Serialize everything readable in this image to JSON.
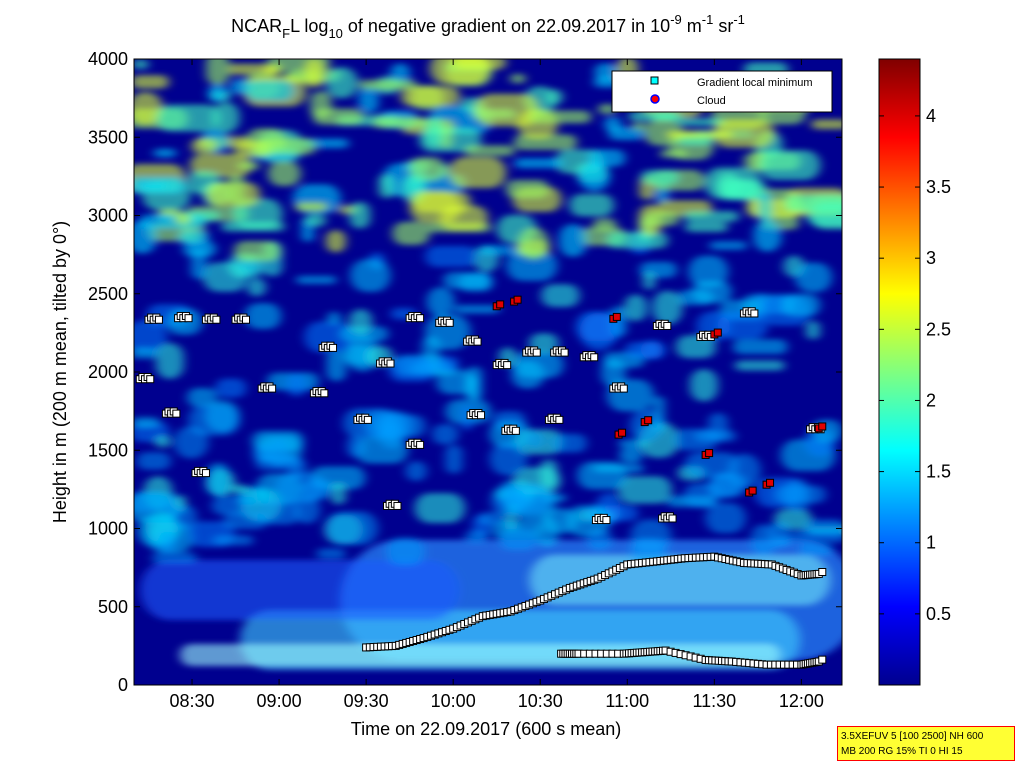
{
  "chart_data": {
    "type": "heatmap",
    "title": {
      "main": "NCAR",
      "sub1": "F",
      "mid1": "L log",
      "sub2": "10",
      "mid2": " of negative gradient on 22.09.2017 in 10",
      "sup1": "-9",
      "mid3": " m",
      "sup2": "-1",
      "mid4": " sr",
      "sup3": "-1"
    },
    "xlabel": "Time on 22.09.2017 (600 s mean)",
    "ylabel": "Height in m (200 m mean, tilted by 0°)",
    "xlim_hours": [
      8.1667,
      12.2333
    ],
    "ylim": [
      0,
      4000
    ],
    "x_ticks": [
      {
        "value": 8.5,
        "label": "08:30"
      },
      {
        "value": 9.0,
        "label": "09:00"
      },
      {
        "value": 9.5,
        "label": "09:30"
      },
      {
        "value": 10.0,
        "label": "10:00"
      },
      {
        "value": 10.5,
        "label": "10:30"
      },
      {
        "value": 11.0,
        "label": "11:00"
      },
      {
        "value": 11.5,
        "label": "11:30"
      },
      {
        "value": 12.0,
        "label": "12:00"
      }
    ],
    "y_ticks": [
      0,
      500,
      1000,
      1500,
      2000,
      2500,
      3000,
      3500,
      4000
    ],
    "colorbar": {
      "colormap": "jet",
      "range": [
        0,
        4.4
      ],
      "ticks": [
        0.5,
        1,
        1.5,
        2,
        2.5,
        3,
        3.5,
        4
      ]
    },
    "legend": {
      "placement": "top-right",
      "entries": [
        {
          "label": "Gradient local minimum",
          "marker": "square",
          "color": "#00ffff"
        },
        {
          "label": "Cloud",
          "marker": "circle",
          "color": "#ff0000",
          "edge": "#0000ff"
        }
      ]
    },
    "series": [
      {
        "role": "gradient-minimum-boundary-layer",
        "x": [
          9.5,
          9.67,
          9.83,
          10.0,
          10.17,
          10.33,
          10.5,
          10.67,
          10.83,
          11.0,
          11.17,
          11.33,
          11.5,
          11.67,
          11.83,
          12.0,
          12.1
        ],
        "y": [
          240,
          250,
          300,
          360,
          440,
          470,
          540,
          620,
          680,
          770,
          790,
          810,
          820,
          780,
          770,
          700,
          710
        ]
      },
      {
        "role": "gradient-minimum-low",
        "x": [
          10.62,
          10.72,
          10.98,
          11.1,
          11.22,
          11.45,
          11.6,
          11.8,
          12.0,
          12.1
        ],
        "y": [
          200,
          200,
          200,
          210,
          220,
          160,
          150,
          130,
          130,
          150
        ]
      },
      {
        "role": "gradient-minimum-mid-layer",
        "x": [
          8.25,
          8.42,
          8.58,
          8.75,
          9.25,
          9.58,
          9.75,
          9.92,
          10.08,
          10.25,
          10.42,
          10.58,
          10.75,
          10.92,
          11.17,
          11.42,
          11.67
        ],
        "y": [
          2340,
          2350,
          2340,
          2340,
          2160,
          2060,
          2350,
          2320,
          2200,
          2050,
          2130,
          2130,
          2100,
          1900,
          2300,
          2230,
          2380
        ]
      },
      {
        "role": "gradient-minimum-scattered",
        "x": [
          8.2,
          8.35,
          8.52,
          8.9,
          9.2,
          9.45,
          9.62,
          9.75,
          10.1,
          10.3,
          10.55,
          10.82,
          11.2,
          12.05
        ],
        "y": [
          1960,
          1740,
          1360,
          1900,
          1870,
          1700,
          1150,
          1540,
          1730,
          1630,
          1700,
          1060,
          1070,
          1640
        ]
      },
      {
        "role": "cloud",
        "x": [
          10.25,
          10.35,
          10.92,
          10.95,
          11.1,
          11.45,
          11.5,
          11.7,
          11.8,
          12.1
        ],
        "y": [
          2420,
          2450,
          2340,
          1600,
          1680,
          1470,
          2240,
          1230,
          1280,
          1640
        ]
      }
    ]
  },
  "info_box": {
    "line1": "3.5XEFUV 5 [100 2500] NH 600",
    "line2": "MB 200 RG 15% TI 0 HI 15"
  }
}
